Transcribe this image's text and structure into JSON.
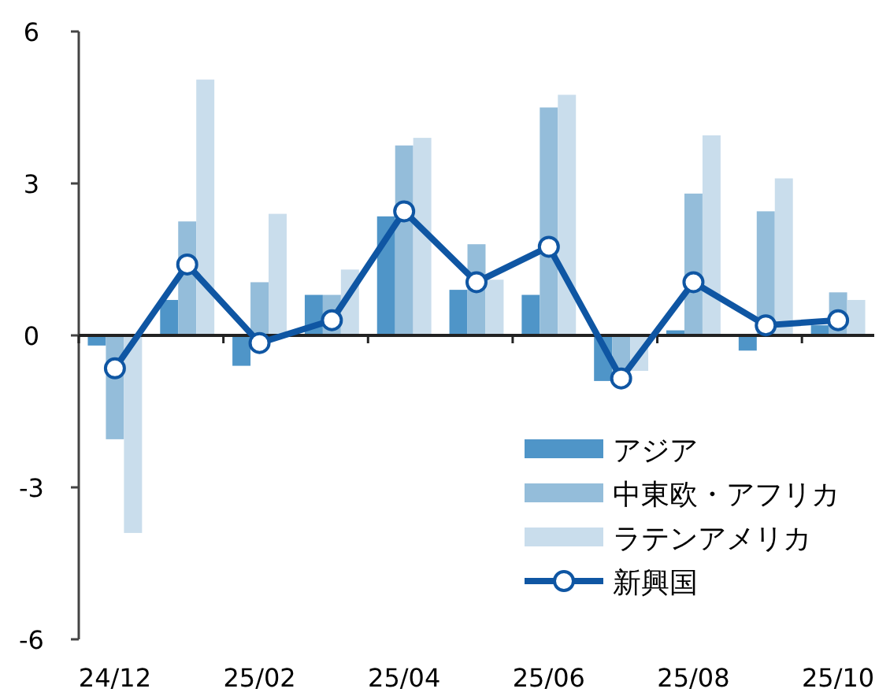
{
  "chart_data": {
    "type": "bar",
    "categories": [
      "24/12",
      null,
      "25/02",
      null,
      "25/04",
      null,
      "25/06",
      null,
      "25/08",
      null,
      "25/10"
    ],
    "series": [
      {
        "name": "アジア",
        "color": "#4f95c8",
        "values": [
          -0.2,
          0.7,
          -0.6,
          0.8,
          2.35,
          0.9,
          0.8,
          -0.9,
          0.1,
          -0.3,
          0.2
        ]
      },
      {
        "name": "中東欧・アフリカ",
        "color": "#94bdda",
        "values": [
          -2.05,
          2.25,
          1.05,
          0.8,
          3.75,
          1.8,
          4.5,
          -0.8,
          2.8,
          2.45,
          0.85
        ]
      },
      {
        "name": "ラテンアメリカ",
        "color": "#c9ddec",
        "values": [
          -3.9,
          5.05,
          2.4,
          1.3,
          3.9,
          1.1,
          4.75,
          -0.7,
          3.95,
          3.1,
          0.7
        ]
      },
      {
        "name": "新興国",
        "type": "line",
        "color": "#0f56a3",
        "marker": "circle",
        "values": [
          -0.65,
          1.4,
          -0.15,
          0.3,
          2.45,
          1.05,
          1.75,
          -0.85,
          1.05,
          0.2,
          0.3
        ]
      }
    ],
    "ylim": [
      -6,
      6
    ],
    "yticks": [
      6,
      3,
      0,
      -3,
      -6
    ],
    "legend": "bottom right"
  }
}
